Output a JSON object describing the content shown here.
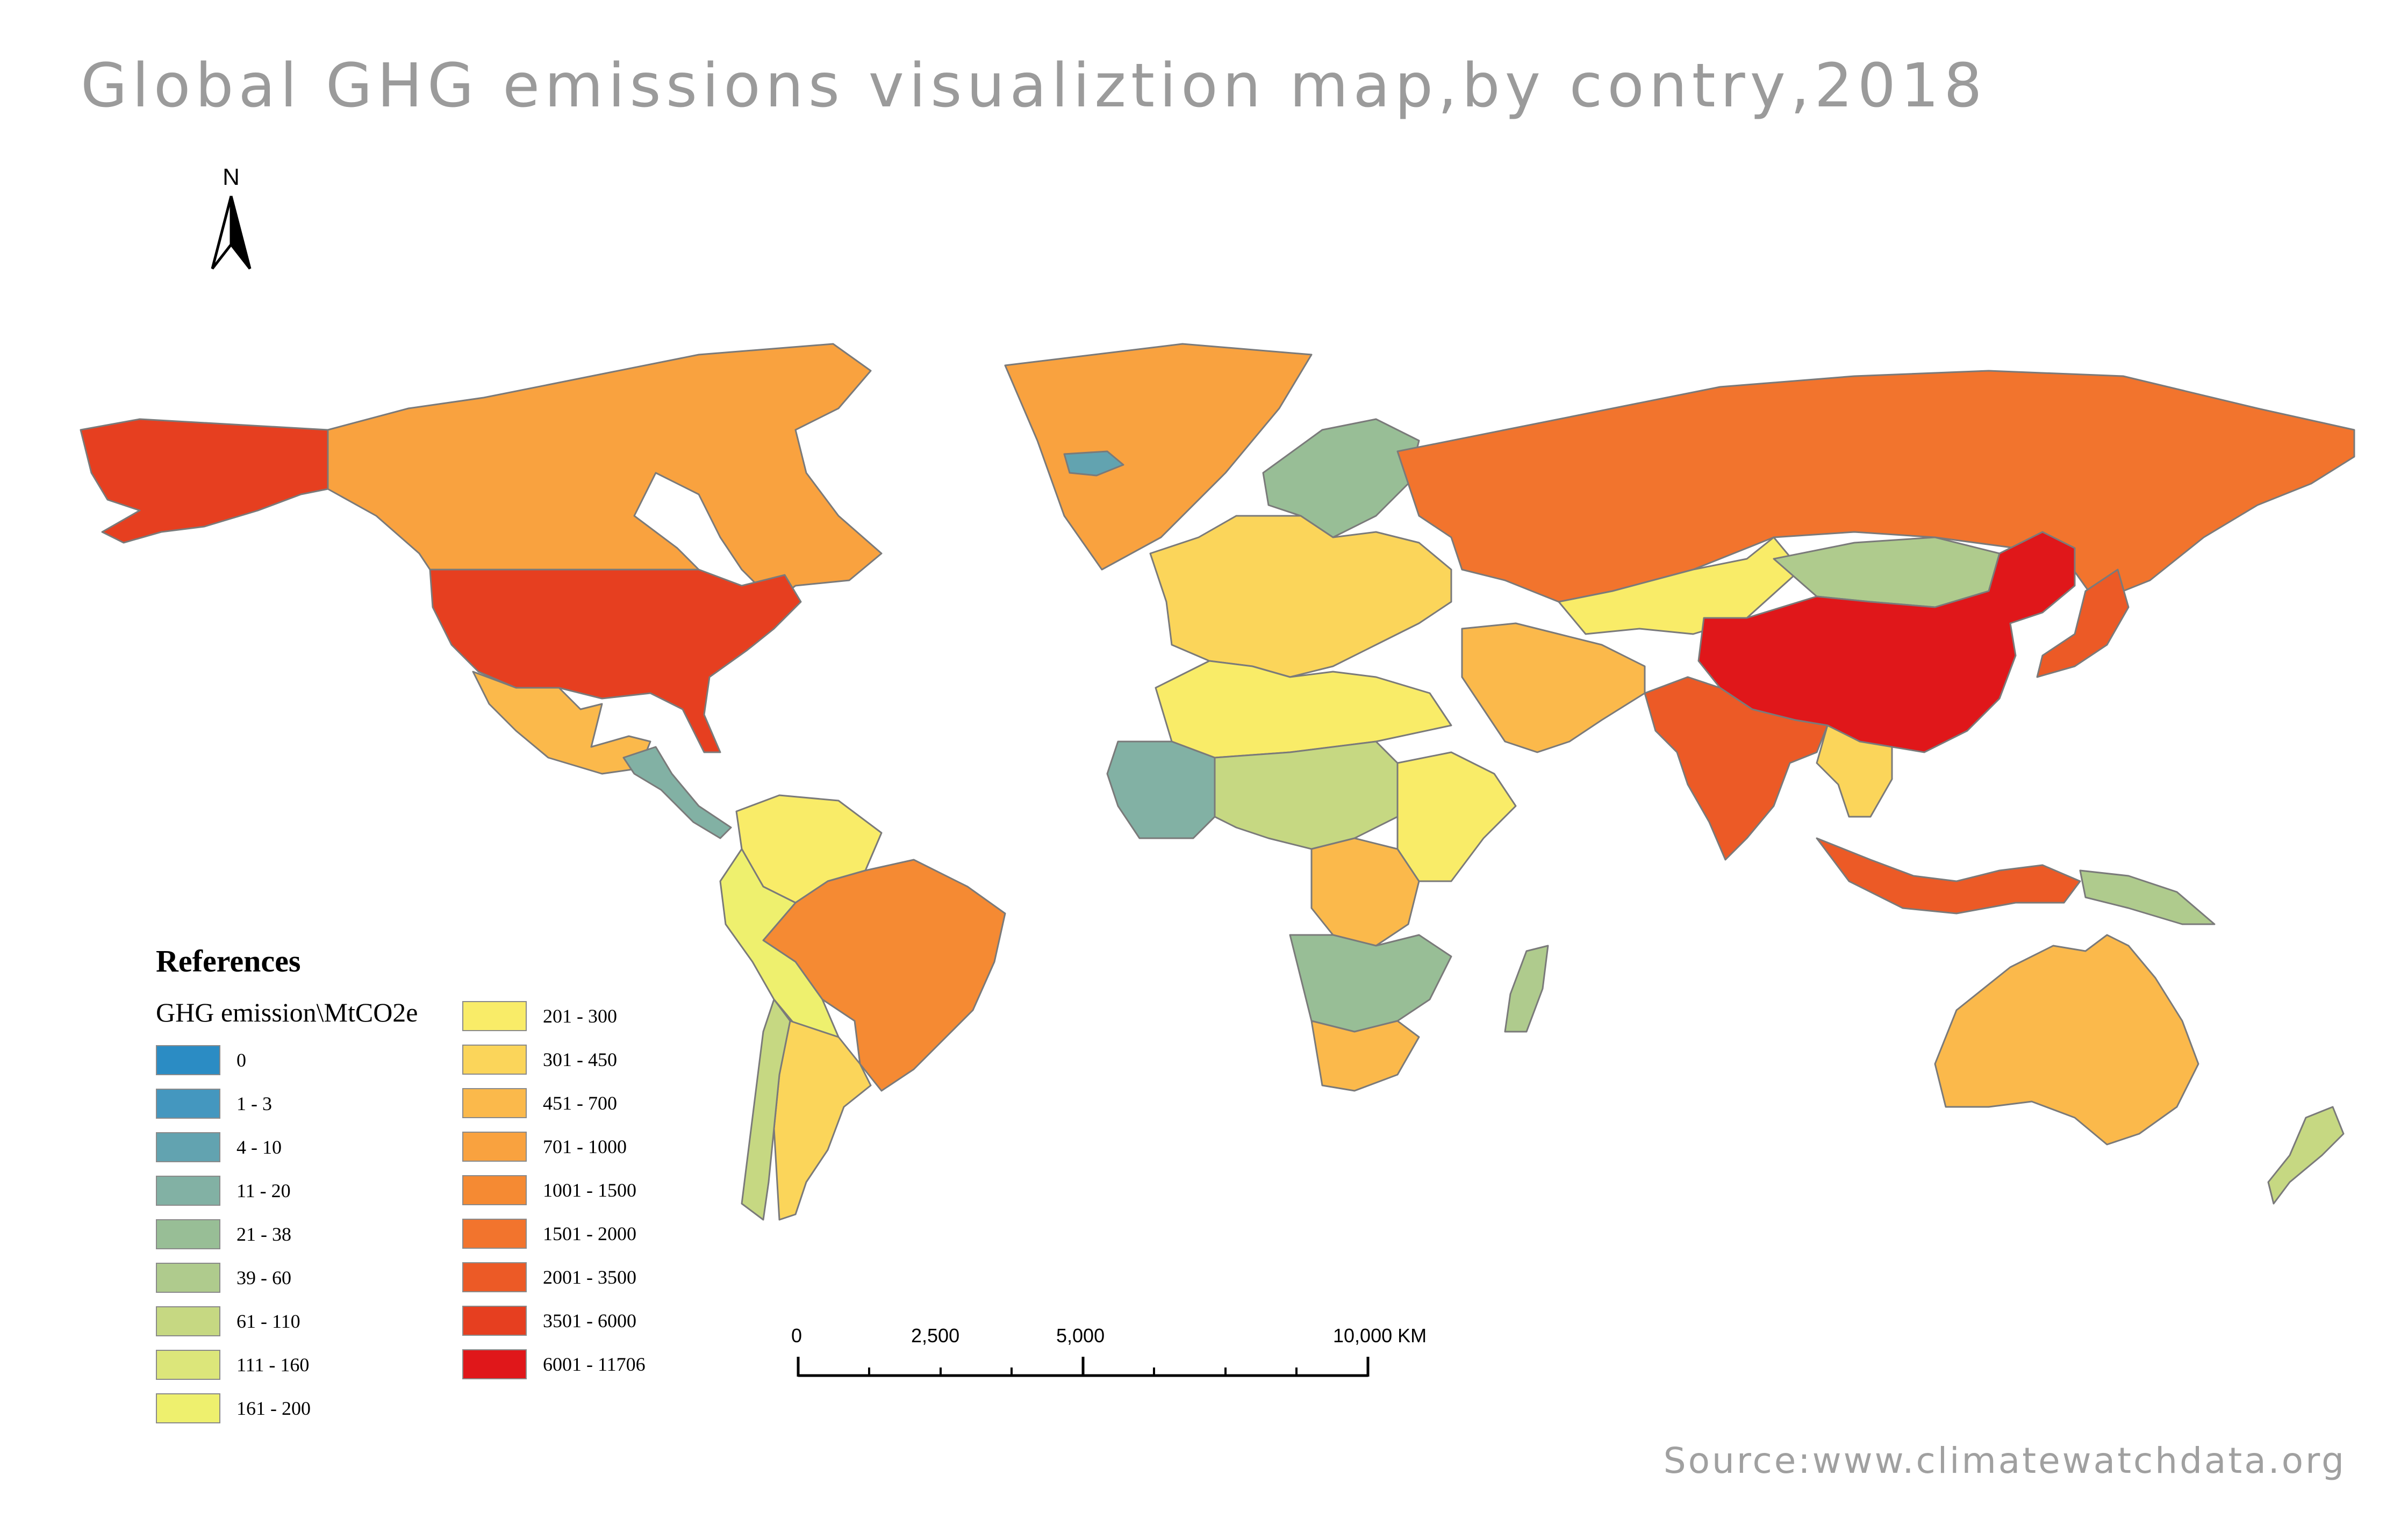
{
  "title": "Global GHG emissions visualiztion map,by contry,2018",
  "source": "Source:www.climatewatchdata.org",
  "north_label": "N",
  "legend": {
    "title": "References",
    "subtitle": "GHG emission\\MtCO2e",
    "classes": [
      {
        "label": "0",
        "color": "#2b8cc4"
      },
      {
        "label": "1 - 3",
        "color": "#4497bf"
      },
      {
        "label": "4 - 10",
        "color": "#62a3b0"
      },
      {
        "label": "11 - 20",
        "color": "#82b1a4"
      },
      {
        "label": "21 - 38",
        "color": "#98be96"
      },
      {
        "label": "39 - 60",
        "color": "#afcb8d"
      },
      {
        "label": "61 - 110",
        "color": "#c6d882"
      },
      {
        "label": "111 - 160",
        "color": "#dce67a"
      },
      {
        "label": "161 - 200",
        "color": "#eef06e"
      },
      {
        "label": "201 - 300",
        "color": "#f9ec68"
      },
      {
        "label": "301 - 450",
        "color": "#fbd55a"
      },
      {
        "label": "451 - 700",
        "color": "#fbb94b"
      },
      {
        "label": "701 - 1000",
        "color": "#f9a23f"
      },
      {
        "label": "1001 - 1500",
        "color": "#f58a33"
      },
      {
        "label": "1501 - 2000",
        "color": "#f2742d"
      },
      {
        "label": "2001 - 3500",
        "color": "#ec5a26"
      },
      {
        "label": "3501 - 6000",
        "color": "#e63f20"
      },
      {
        "label": "6001 - 11706",
        "color": "#e0171a"
      }
    ]
  },
  "scale": {
    "labels": [
      "0",
      "2,500",
      "5,000",
      "10,000 KM"
    ]
  },
  "regions": [
    {
      "name": "Alaska (USA)",
      "class": "3501 - 6000"
    },
    {
      "name": "Canada",
      "class": "701 - 1000"
    },
    {
      "name": "United States",
      "class": "3501 - 6000"
    },
    {
      "name": "Mexico",
      "class": "451 - 700"
    },
    {
      "name": "Central America",
      "class": "11 - 20"
    },
    {
      "name": "Colombia/Venezuela",
      "class": "201 - 300"
    },
    {
      "name": "Brazil",
      "class": "1001 - 1500"
    },
    {
      "name": "Peru/Bolivia",
      "class": "161 - 200"
    },
    {
      "name": "Argentina",
      "class": "301 - 450"
    },
    {
      "name": "Chile",
      "class": "61 - 110"
    },
    {
      "name": "Greenland",
      "class": "701 - 1000"
    },
    {
      "name": "Iceland",
      "class": "4 - 10"
    },
    {
      "name": "Scandinavia",
      "class": "21 - 38"
    },
    {
      "name": "Western Europe",
      "class": "301 - 450"
    },
    {
      "name": "Russia",
      "class": "1501 - 2000"
    },
    {
      "name": "Kazakhstan",
      "class": "201 - 300"
    },
    {
      "name": "Mongolia",
      "class": "39 - 60"
    },
    {
      "name": "China",
      "class": "6001 - 11706"
    },
    {
      "name": "India",
      "class": "2001 - 3500"
    },
    {
      "name": "Middle East",
      "class": "451 - 700"
    },
    {
      "name": "Japan",
      "class": "2001 - 3500"
    },
    {
      "name": "Southeast Asia",
      "class": "301 - 450"
    },
    {
      "name": "Indonesia",
      "class": "2001 - 3500"
    },
    {
      "name": "Australia",
      "class": "451 - 700"
    },
    {
      "name": "North Africa",
      "class": "201 - 300"
    },
    {
      "name": "West Africa",
      "class": "11 - 20"
    },
    {
      "name": "Central Africa",
      "class": "61 - 110"
    },
    {
      "name": "DR Congo",
      "class": "451 - 700"
    },
    {
      "name": "East Africa",
      "class": "201 - 300"
    },
    {
      "name": "Southern Africa",
      "class": "21 - 38"
    },
    {
      "name": "South Africa",
      "class": "451 - 700"
    },
    {
      "name": "Madagascar",
      "class": "39 - 60"
    },
    {
      "name": "New Zealand",
      "class": "61 - 110"
    },
    {
      "name": "Papua New Guinea",
      "class": "39 - 60"
    }
  ]
}
